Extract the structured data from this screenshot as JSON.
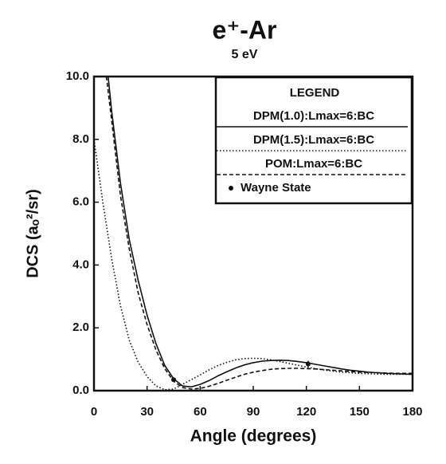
{
  "chart_data": {
    "type": "line",
    "title": "e⁺-Ar",
    "subtitle": "5 eV",
    "x_label": "Angle (degrees)",
    "y_label": "DCS (aₒ²/sr)",
    "legend_title": "LEGEND",
    "legend": "upper right",
    "xlim": [
      0,
      180
    ],
    "xticks": [
      0,
      30,
      60,
      90,
      120,
      150,
      180
    ],
    "ylim": [
      0,
      10
    ],
    "yticks": [
      {
        "value": 0,
        "label": "0.0"
      },
      {
        "value": 2,
        "label": "2.0"
      },
      {
        "value": 4,
        "label": "4.0"
      },
      {
        "value": 6,
        "label": "6.0"
      },
      {
        "value": 8,
        "label": "8.0"
      },
      {
        "value": 10,
        "label": "10.0"
      }
    ],
    "series": [
      {
        "name": "DPM(1.0):Lmax=6:BC",
        "color": "#111111",
        "dash": "solid",
        "x": [
          8,
          10,
          15,
          20,
          25,
          30,
          35,
          40,
          45,
          50,
          55,
          60,
          65,
          70,
          75,
          80,
          85,
          90,
          95,
          100,
          105,
          110,
          115,
          120,
          125,
          130,
          135,
          140,
          145,
          150,
          155,
          160,
          165,
          170,
          175,
          180
        ],
        "values": [
          10,
          8.9,
          6.6,
          4.8,
          3.5,
          2.4,
          1.5,
          0.8,
          0.38,
          0.15,
          0.12,
          0.2,
          0.32,
          0.47,
          0.6,
          0.72,
          0.82,
          0.89,
          0.94,
          0.96,
          0.97,
          0.96,
          0.93,
          0.89,
          0.84,
          0.79,
          0.74,
          0.69,
          0.65,
          0.62,
          0.59,
          0.57,
          0.55,
          0.54,
          0.53,
          0.52
        ]
      },
      {
        "name": "DPM(1.5):Lmax=6:BC",
        "color": "#111111",
        "dash": "dotted",
        "x": [
          0,
          5,
          10,
          15,
          20,
          25,
          30,
          35,
          40,
          45,
          50,
          55,
          60,
          65,
          70,
          75,
          80,
          85,
          90,
          95,
          100,
          105,
          110,
          115,
          120,
          125,
          130,
          135,
          140,
          145,
          150,
          155,
          160,
          165,
          170,
          175,
          180
        ],
        "values": [
          8.0,
          6.0,
          4.2,
          2.7,
          1.6,
          0.9,
          0.45,
          0.15,
          0.03,
          0.05,
          0.2,
          0.35,
          0.5,
          0.66,
          0.8,
          0.9,
          0.98,
          1.02,
          1.03,
          1.02,
          0.98,
          0.93,
          0.87,
          0.81,
          0.75,
          0.7,
          0.66,
          0.62,
          0.59,
          0.57,
          0.55,
          0.54,
          0.53,
          0.52,
          0.52,
          0.52,
          0.52
        ]
      },
      {
        "name": "POM:Lmax=6:BC",
        "color": "#111111",
        "dash": "dashed",
        "x": [
          7,
          10,
          15,
          20,
          25,
          30,
          35,
          40,
          45,
          50,
          55,
          60,
          65,
          70,
          75,
          80,
          85,
          90,
          95,
          100,
          105,
          110,
          115,
          120,
          125,
          130,
          135,
          140,
          145,
          150,
          155,
          160,
          165,
          170,
          175,
          180
        ],
        "values": [
          10,
          8.6,
          6.2,
          4.5,
          3.1,
          2.1,
          1.3,
          0.7,
          0.3,
          0.1,
          0.05,
          0.07,
          0.14,
          0.23,
          0.33,
          0.43,
          0.52,
          0.59,
          0.64,
          0.68,
          0.7,
          0.71,
          0.71,
          0.7,
          0.69,
          0.67,
          0.65,
          0.63,
          0.61,
          0.59,
          0.58,
          0.57,
          0.56,
          0.55,
          0.55,
          0.55
        ]
      },
      {
        "name": "Wayne State",
        "color": "#111111",
        "dash": "points",
        "x": [
          45,
          121
        ],
        "values": [
          0.35,
          0.85
        ],
        "errors": [
          0.05,
          0.1
        ]
      }
    ]
  }
}
